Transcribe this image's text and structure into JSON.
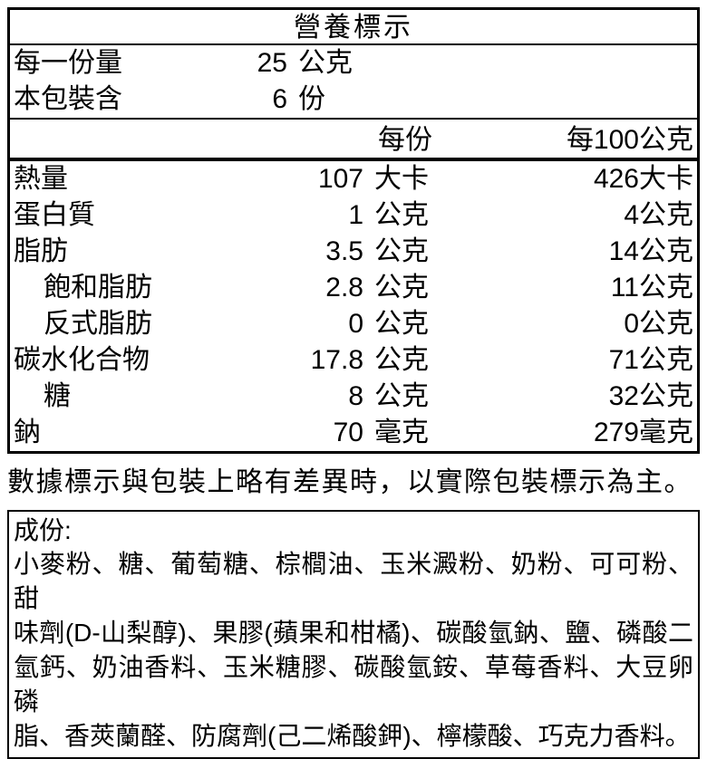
{
  "title": "營養標示",
  "serving_info": {
    "rows": [
      {
        "label": "每一份量",
        "value": "25",
        "unit": "公克"
      },
      {
        "label": "本包裝含",
        "value": "6",
        "unit": "份"
      }
    ]
  },
  "columns": {
    "per_serving": "每份",
    "per_100g": "每100公克"
  },
  "nutrients": [
    {
      "label": "熱量",
      "per_serving": "107",
      "unit": "大卡",
      "per_100g": "426大卡"
    },
    {
      "label": "蛋白質",
      "per_serving": "1",
      "unit": "公克",
      "per_100g": "4公克"
    },
    {
      "label": "脂肪",
      "per_serving": "3.5",
      "unit": "公克",
      "per_100g": "14公克"
    },
    {
      "label": "飽和脂肪",
      "per_serving": "2.8",
      "unit": "公克",
      "per_100g": "11公克"
    },
    {
      "label": "反式脂肪",
      "per_serving": "0",
      "unit": "公克",
      "per_100g": "0公克"
    },
    {
      "label": "碳水化合物",
      "per_serving": "17.8",
      "unit": "公克",
      "per_100g": "71公克"
    },
    {
      "label": "糖",
      "per_serving": "8",
      "unit": "公克",
      "per_100g": "32公克"
    },
    {
      "label": "鈉",
      "per_serving": "70",
      "unit": "毫克",
      "per_100g": "279毫克"
    }
  ],
  "note": "數據標示與包裝上略有差異時，以實際包裝標示為主。",
  "ingredients": {
    "label": "成份:",
    "lines": [
      "小麥粉、糖、葡萄糖、棕櫚油、玉米澱粉、奶粉、可可粉、甜",
      "味劑(D-山梨醇)、果膠(蘋果和柑橘)、碳酸氫鈉、鹽、磷酸二",
      "氫鈣、奶油香料、玉米糖膠、碳酸氫銨、草莓香料、大豆卵磷",
      "脂、香莢蘭醛、防腐劑(己二烯酸鉀)、檸檬酸、巧克力香料。"
    ]
  },
  "colors": {
    "text": "#000000",
    "background": "#ffffff",
    "border": "#000000"
  }
}
